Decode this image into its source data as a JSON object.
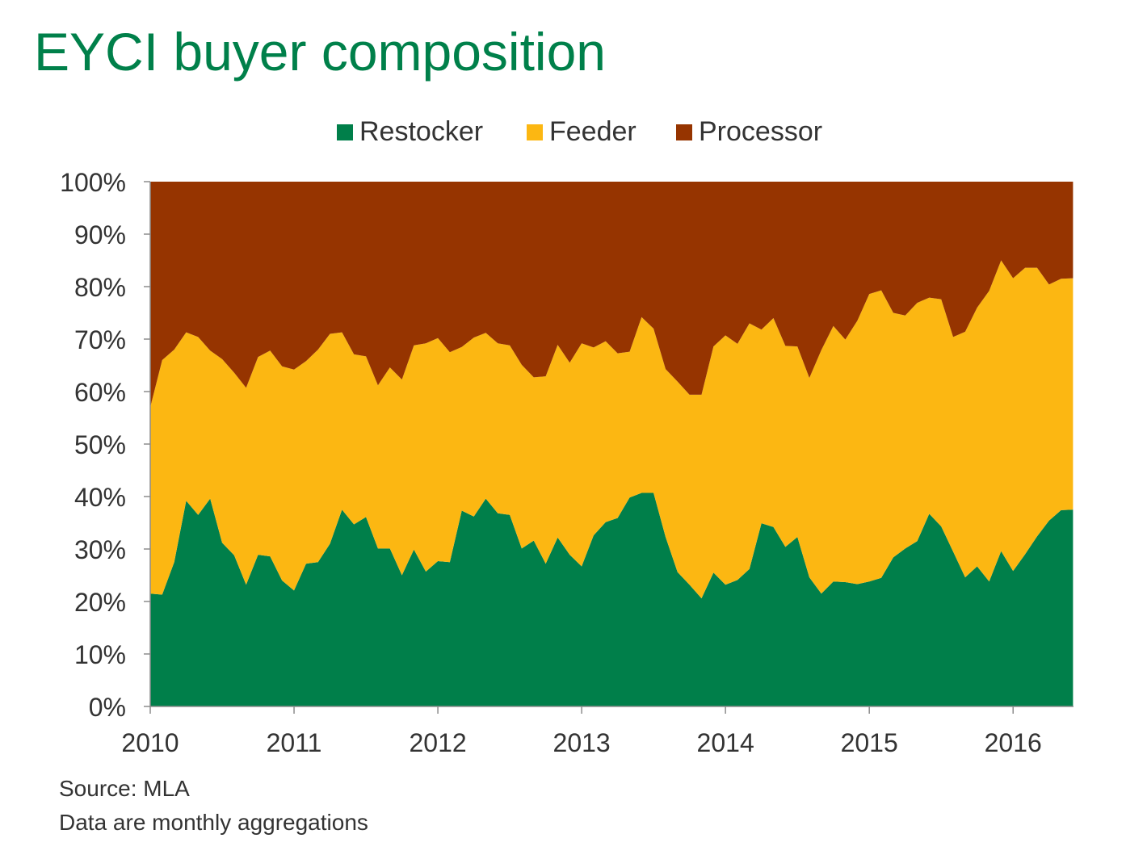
{
  "title": "EYCI buyer composition",
  "footer": {
    "source": "Source: MLA",
    "note": "Data are monthly aggregations"
  },
  "colors": {
    "title": "#00804A",
    "Restocker": "#007F4A",
    "Feeder": "#FCB712",
    "Processor": "#963400",
    "axis_text": "#333333"
  },
  "chart_data": {
    "type": "area",
    "stacked": true,
    "title": "EYCI buyer composition",
    "xlabel": "",
    "ylabel": "",
    "x_start": "2010-01",
    "x_end": "2016-06",
    "xlim": [
      2010.0,
      2016.42
    ],
    "ylim": [
      0,
      100
    ],
    "y_ticks": [
      "0%",
      "10%",
      "20%",
      "30%",
      "40%",
      "50%",
      "60%",
      "70%",
      "80%",
      "90%",
      "100%"
    ],
    "x_ticks": [
      "2010",
      "2011",
      "2012",
      "2013",
      "2014",
      "2015",
      "2016"
    ],
    "legend_position": "top",
    "grid": false,
    "x": [
      "2010-01",
      "2010-02",
      "2010-03",
      "2010-04",
      "2010-05",
      "2010-06",
      "2010-07",
      "2010-08",
      "2010-09",
      "2010-10",
      "2010-11",
      "2010-12",
      "2011-01",
      "2011-02",
      "2011-03",
      "2011-04",
      "2011-05",
      "2011-06",
      "2011-07",
      "2011-08",
      "2011-09",
      "2011-10",
      "2011-11",
      "2011-12",
      "2012-01",
      "2012-02",
      "2012-03",
      "2012-04",
      "2012-05",
      "2012-06",
      "2012-07",
      "2012-08",
      "2012-09",
      "2012-10",
      "2012-11",
      "2012-12",
      "2013-01",
      "2013-02",
      "2013-03",
      "2013-04",
      "2013-05",
      "2013-06",
      "2013-07",
      "2013-08",
      "2013-09",
      "2013-10",
      "2013-11",
      "2013-12",
      "2014-01",
      "2014-02",
      "2014-03",
      "2014-04",
      "2014-05",
      "2014-06",
      "2014-07",
      "2014-08",
      "2014-09",
      "2014-10",
      "2014-11",
      "2014-12",
      "2015-01",
      "2015-02",
      "2015-03",
      "2015-04",
      "2015-05",
      "2015-06",
      "2015-07",
      "2015-08",
      "2015-09",
      "2015-10",
      "2015-11",
      "2015-12",
      "2016-01",
      "2016-02",
      "2016-03",
      "2016-04",
      "2016-05",
      "2016-06"
    ],
    "series": [
      {
        "name": "Restocker",
        "values": [
          21.5,
          21.3,
          27.5,
          39.2,
          36.5,
          39.6,
          31.2,
          28.8,
          23.2,
          28.9,
          28.6,
          24.0,
          22.1,
          27.2,
          27.5,
          31.0,
          37.5,
          34.7,
          36.1,
          30.1,
          30.1,
          25.0,
          29.9,
          25.7,
          27.7,
          27.5,
          37.3,
          36.2,
          39.6,
          36.8,
          36.5,
          30.1,
          31.6,
          27.2,
          32.2,
          28.9,
          26.7,
          32.6,
          35.1,
          35.9,
          39.8,
          40.7,
          40.7,
          32.3,
          25.6,
          23.2,
          20.6,
          25.5,
          23.2,
          24.1,
          26.2,
          34.9,
          34.2,
          30.4,
          32.3,
          24.6,
          21.5,
          23.8,
          23.7,
          23.3,
          23.8,
          24.5,
          28.4,
          30.1,
          31.5,
          36.7,
          34.3,
          29.5,
          24.6,
          26.7,
          23.8,
          29.6,
          25.8,
          29.0,
          32.4,
          35.4,
          37.4,
          37.5
        ]
      },
      {
        "name": "Feeder",
        "values": [
          35.5,
          44.7,
          40.5,
          32.1,
          33.9,
          28.2,
          35.0,
          34.8,
          37.5,
          37.7,
          39.2,
          40.8,
          42.1,
          38.6,
          40.5,
          40.0,
          33.8,
          32.4,
          30.6,
          31.1,
          34.5,
          37.3,
          38.9,
          43.5,
          42.5,
          40.0,
          31.2,
          34.1,
          31.6,
          32.4,
          32.3,
          35.0,
          31.1,
          35.7,
          36.7,
          36.6,
          42.5,
          35.8,
          34.5,
          31.4,
          27.8,
          33.5,
          31.3,
          32.0,
          36.3,
          36.2,
          38.8,
          43.1,
          47.5,
          45.0,
          46.8,
          36.9,
          39.8,
          38.3,
          36.3,
          38.0,
          46.4,
          48.7,
          46.2,
          50.2,
          54.8,
          54.8,
          46.6,
          44.4,
          45.4,
          41.2,
          43.3,
          40.9,
          46.8,
          49.3,
          55.4,
          55.4,
          55.8,
          54.6,
          51.2,
          45.0,
          44.1,
          44.1
        ]
      },
      {
        "name": "Processor",
        "values": [
          43.0,
          34.0,
          32.0,
          28.7,
          29.6,
          32.2,
          33.8,
          36.4,
          39.3,
          33.4,
          32.2,
          35.2,
          35.8,
          34.2,
          32.0,
          29.0,
          28.7,
          32.9,
          33.3,
          38.8,
          35.4,
          37.7,
          31.2,
          30.8,
          29.8,
          32.5,
          31.5,
          29.7,
          28.8,
          30.8,
          31.2,
          34.9,
          37.3,
          37.1,
          31.1,
          34.5,
          30.8,
          31.6,
          30.4,
          32.7,
          32.4,
          25.8,
          28.0,
          35.7,
          38.1,
          40.6,
          40.6,
          31.4,
          29.3,
          30.9,
          27.0,
          28.2,
          26.0,
          31.3,
          31.4,
          37.4,
          32.1,
          27.5,
          30.1,
          26.5,
          21.4,
          20.7,
          25.0,
          25.5,
          23.1,
          22.1,
          22.4,
          29.6,
          28.6,
          24.0,
          20.8,
          15.0,
          18.4,
          16.4,
          16.4,
          19.6,
          18.5,
          18.4
        ]
      }
    ]
  }
}
